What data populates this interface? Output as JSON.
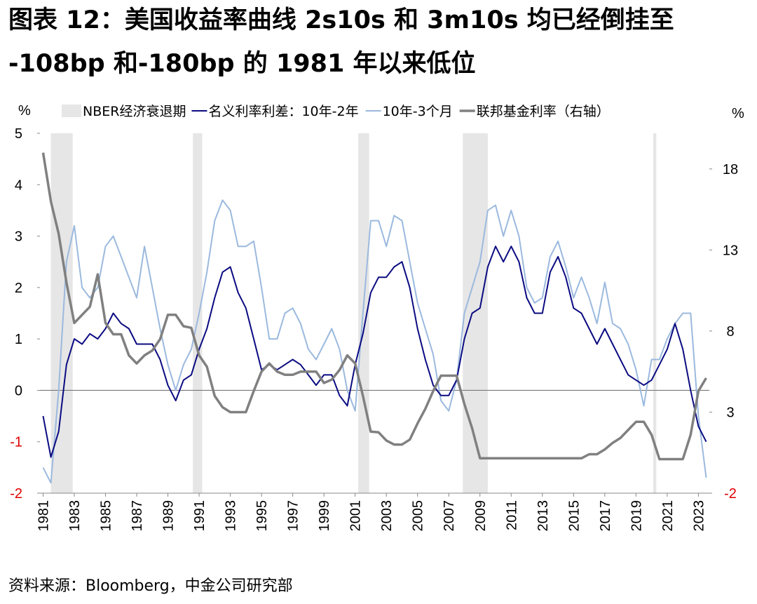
{
  "chart_data": {
    "type": "line",
    "title": [
      "图表 12：美国收益率曲线 2s10s 和 3m10s 均已经倒挂至",
      "-108bp 和-180bp 的 1981 年以来低位"
    ],
    "source": "资料来源：Bloomberg，中金公司研究部",
    "ylabel": "%",
    "y2label": "%",
    "recession_name": "NBER经济衰退期",
    "recession_color": "#e6e6e6",
    "recessions": [
      [
        1981.5,
        1982.9
      ],
      [
        1990.6,
        1991.2
      ],
      [
        2001.2,
        2001.9
      ],
      [
        2007.9,
        2009.5
      ],
      [
        2020.1,
        2020.3
      ]
    ],
    "x": [
      1981,
      1981.5,
      1982,
      1982.5,
      1983,
      1983.5,
      1984,
      1984.5,
      1985,
      1985.5,
      1986,
      1986.5,
      1987,
      1987.5,
      1988,
      1988.5,
      1989,
      1989.5,
      1990,
      1990.5,
      1991,
      1991.5,
      1992,
      1992.5,
      1993,
      1993.5,
      1994,
      1994.5,
      1995,
      1995.5,
      1996,
      1996.5,
      1997,
      1997.5,
      1998,
      1998.5,
      1999,
      1999.5,
      2000,
      2000.5,
      2001,
      2001.5,
      2002,
      2002.5,
      2003,
      2003.5,
      2004,
      2004.5,
      2005,
      2005.5,
      2006,
      2006.5,
      2007,
      2007.5,
      2008,
      2008.5,
      2009,
      2009.5,
      2010,
      2010.5,
      2011,
      2011.5,
      2012,
      2012.5,
      2013,
      2013.5,
      2014,
      2014.5,
      2015,
      2015.5,
      2016,
      2016.5,
      2017,
      2017.5,
      2018,
      2018.5,
      2019,
      2019.5,
      2020,
      2020.5,
      2021,
      2021.5,
      2022,
      2022.5,
      2023,
      2023.5
    ],
    "series": [
      {
        "name": "名义利率利差：10年-2年",
        "color": "#0b0b82",
        "width": 2,
        "values": [
          -0.5,
          -1.3,
          -0.8,
          0.5,
          1.0,
          0.9,
          1.1,
          1.0,
          1.2,
          1.5,
          1.3,
          1.2,
          0.9,
          0.9,
          0.9,
          0.6,
          0.1,
          -0.2,
          0.2,
          0.3,
          0.8,
          1.2,
          1.8,
          2.3,
          2.4,
          1.9,
          1.6,
          1.0,
          0.4,
          0.5,
          0.4,
          0.5,
          0.6,
          0.5,
          0.3,
          0.1,
          0.3,
          0.3,
          -0.1,
          -0.3,
          0.5,
          1.1,
          1.9,
          2.2,
          2.2,
          2.4,
          2.5,
          2.0,
          1.2,
          0.6,
          0.1,
          -0.1,
          -0.1,
          0.2,
          1.0,
          1.5,
          1.6,
          2.4,
          2.8,
          2.5,
          2.8,
          2.5,
          1.8,
          1.5,
          1.5,
          2.3,
          2.6,
          2.2,
          1.6,
          1.5,
          1.2,
          0.9,
          1.2,
          0.9,
          0.6,
          0.3,
          0.2,
          0.1,
          0.2,
          0.5,
          0.8,
          1.3,
          0.8,
          0.0,
          -0.7,
          -1.0
        ]
      },
      {
        "name": "10年-3个月",
        "color": "#9bb9de",
        "width": 2,
        "values": [
          -1.5,
          -1.8,
          0.0,
          2.5,
          3.2,
          2.0,
          1.8,
          2.0,
          2.8,
          3.0,
          2.6,
          2.2,
          1.8,
          2.8,
          2.0,
          1.2,
          0.5,
          0.0,
          0.5,
          0.8,
          1.5,
          2.3,
          3.3,
          3.7,
          3.5,
          2.8,
          2.8,
          2.9,
          2.0,
          1.0,
          1.0,
          1.5,
          1.6,
          1.3,
          0.8,
          0.6,
          0.9,
          1.2,
          0.8,
          0.0,
          -0.4,
          1.5,
          3.3,
          3.3,
          2.8,
          3.4,
          3.3,
          2.5,
          1.7,
          1.2,
          0.7,
          -0.2,
          -0.4,
          0.2,
          1.5,
          2.0,
          2.5,
          3.5,
          3.6,
          3.0,
          3.5,
          3.0,
          2.0,
          1.7,
          1.8,
          2.6,
          2.9,
          2.4,
          1.8,
          2.2,
          1.8,
          1.3,
          2.1,
          1.3,
          1.2,
          0.9,
          0.4,
          -0.3,
          0.6,
          0.6,
          1.0,
          1.3,
          1.5,
          1.5,
          -0.5,
          -1.7
        ]
      },
      {
        "name": "联邦基金利率（右轴）",
        "color": "#808080",
        "width": 3.5,
        "axis": "y2",
        "values": [
          19,
          16,
          14,
          11,
          8.5,
          9.0,
          9.5,
          11.5,
          8.5,
          7.8,
          7.8,
          6.5,
          6.0,
          6.5,
          6.8,
          7.5,
          9.0,
          9.0,
          8.3,
          8.2,
          6.5,
          5.8,
          4.0,
          3.3,
          3.0,
          3.0,
          3.0,
          4.3,
          5.5,
          6.0,
          5.5,
          5.3,
          5.3,
          5.5,
          5.5,
          5.5,
          4.8,
          5.0,
          5.6,
          6.5,
          6.0,
          4.0,
          1.8,
          1.75,
          1.25,
          1.0,
          1.0,
          1.3,
          2.3,
          3.2,
          4.3,
          5.25,
          5.25,
          5.25,
          3.5,
          2.0,
          0.15,
          0.15,
          0.15,
          0.15,
          0.15,
          0.15,
          0.15,
          0.15,
          0.15,
          0.15,
          0.15,
          0.15,
          0.15,
          0.15,
          0.4,
          0.4,
          0.7,
          1.1,
          1.4,
          1.9,
          2.4,
          2.4,
          1.6,
          0.1,
          0.1,
          0.1,
          0.1,
          1.6,
          4.3,
          5.1
        ]
      }
    ],
    "xlim": [
      1980.8,
      2023.7
    ],
    "xticks": [
      1981,
      1983,
      1985,
      1987,
      1989,
      1991,
      1993,
      1995,
      1997,
      1999,
      2001,
      2003,
      2005,
      2007,
      2009,
      2011,
      2013,
      2015,
      2017,
      2019,
      2021,
      2023
    ],
    "ylim": [
      -2,
      5
    ],
    "yticks": [
      -2,
      -1,
      0,
      1,
      2,
      3,
      4,
      5
    ],
    "y2lim": [
      -2,
      20.2
    ],
    "y2ticks": [
      -2,
      3,
      8,
      13,
      18
    ],
    "negative_tick_color": "#e00000",
    "zero_line": true,
    "grid": false
  }
}
